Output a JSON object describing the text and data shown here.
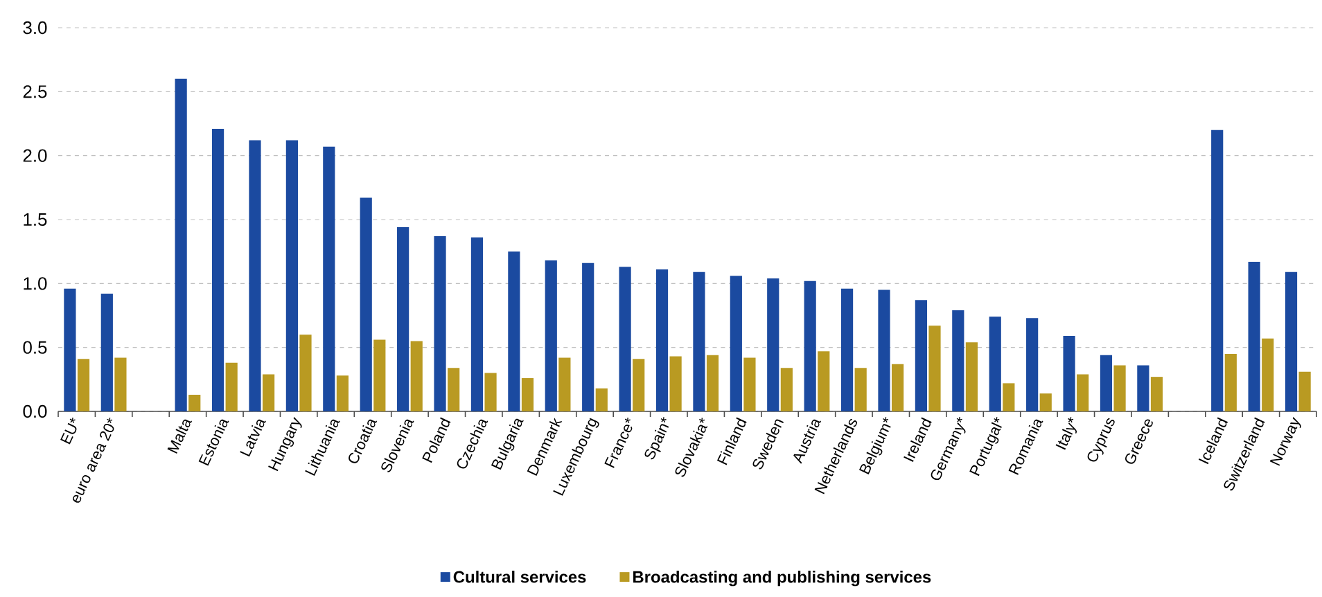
{
  "chart_data": {
    "type": "bar",
    "categories": [
      "EU*",
      "euro area 20*",
      null,
      "Malta",
      "Estonia",
      "Latvia",
      "Hungary",
      "Lithuania",
      "Croatia",
      "Slovenia",
      "Poland",
      "Czechia",
      "Bulgaria",
      "Denmark",
      "Luxembourg",
      "France*",
      "Spain*",
      "Slovakia*",
      "Finland",
      "Sweden",
      "Austria",
      "Netherlands",
      "Belgium*",
      "Ireland",
      "Germany*",
      "Portugal*",
      "Romania",
      "Italy*",
      "Cyprus",
      "Greece",
      null,
      "Iceland",
      "Switzerland",
      "Norway"
    ],
    "series": [
      {
        "name": "Cultural services",
        "color": "#1b4aa0",
        "values": [
          0.96,
          0.92,
          null,
          2.6,
          2.21,
          2.12,
          2.12,
          2.07,
          1.67,
          1.44,
          1.37,
          1.36,
          1.25,
          1.18,
          1.16,
          1.13,
          1.11,
          1.09,
          1.06,
          1.04,
          1.02,
          0.96,
          0.95,
          0.87,
          0.79,
          0.74,
          0.73,
          0.59,
          0.44,
          0.36,
          null,
          2.2,
          1.17,
          1.09
        ]
      },
      {
        "name": "Broadcasting and publishing services",
        "color": "#b99a22",
        "values": [
          0.41,
          0.42,
          null,
          0.13,
          0.38,
          0.29,
          0.6,
          0.28,
          0.56,
          0.55,
          0.34,
          0.3,
          0.26,
          0.42,
          0.18,
          0.41,
          0.43,
          0.44,
          0.42,
          0.34,
          0.47,
          0.34,
          0.37,
          0.67,
          0.54,
          0.22,
          0.14,
          0.29,
          0.36,
          0.27,
          null,
          0.45,
          0.57,
          0.31
        ]
      }
    ],
    "ylim": [
      0,
      3
    ],
    "yticks": [
      {
        "value": 0,
        "label": "0.0"
      },
      {
        "value": 0.5,
        "label": "0.5"
      },
      {
        "value": 1,
        "label": "1.0"
      },
      {
        "value": 1.5,
        "label": "1.5"
      },
      {
        "value": 2,
        "label": "2.0"
      },
      {
        "value": 2.5,
        "label": "2.5"
      },
      {
        "value": 3,
        "label": "3.0"
      }
    ],
    "grid": "y",
    "legend": "bottom"
  }
}
